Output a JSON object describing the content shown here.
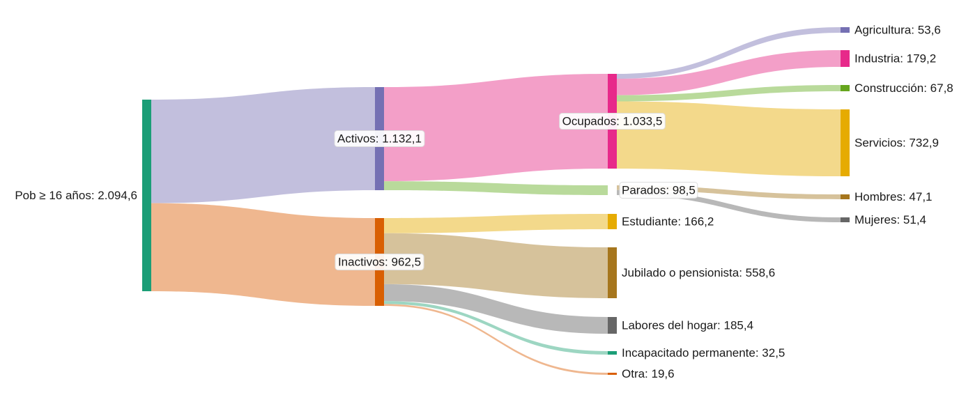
{
  "chart_data": {
    "type": "sankey",
    "nodes": [
      {
        "id": "pob",
        "label": "Pob ≥ 16 años: 2.094,6",
        "value": 2094.6,
        "color": "#1b9e77"
      },
      {
        "id": "activos",
        "label": "Activos: 1.132,1",
        "value": 1132.1,
        "color": "#7570b3"
      },
      {
        "id": "inactivos",
        "label": "Inactivos: 962,5",
        "value": 962.5,
        "color": "#d95f02"
      },
      {
        "id": "ocupados",
        "label": "Ocupados: 1.033,5",
        "value": 1033.5,
        "color": "#e7298a"
      },
      {
        "id": "parados",
        "label": "Parados: 98,5",
        "value": 98.5,
        "color": "#66a61e"
      },
      {
        "id": "estudiante",
        "label": "Estudiante: 166,2",
        "value": 166.2,
        "color": "#e6ab02"
      },
      {
        "id": "jubilado",
        "label": "Jubilado o pensionista: 558,6",
        "value": 558.6,
        "color": "#a6761d"
      },
      {
        "id": "labores",
        "label": "Labores del hogar: 185,4",
        "value": 185.4,
        "color": "#666666"
      },
      {
        "id": "incapacitado",
        "label": "Incapacitado permanente: 32,5",
        "value": 32.5,
        "color": "#1b9e77"
      },
      {
        "id": "otra",
        "label": "Otra: 19,6",
        "value": 19.6,
        "color": "#d95f02"
      },
      {
        "id": "agricultura",
        "label": "Agricultura: 53,6",
        "value": 53.6,
        "color": "#7570b3"
      },
      {
        "id": "industria",
        "label": "Industria: 179,2",
        "value": 179.2,
        "color": "#e7298a"
      },
      {
        "id": "construccion",
        "label": "Construcción: 67,8",
        "value": 67.8,
        "color": "#66a61e"
      },
      {
        "id": "servicios",
        "label": "Servicios: 732,9",
        "value": 732.9,
        "color": "#e6ab02"
      },
      {
        "id": "hombres",
        "label": "Hombres: 47,1",
        "value": 47.1,
        "color": "#a6761d"
      },
      {
        "id": "mujeres",
        "label": "Mujeres: 51,4",
        "value": 51.4,
        "color": "#666666"
      }
    ],
    "links": [
      {
        "source": "pob",
        "target": "activos",
        "value": 1132.1,
        "color": "#c2bfdd"
      },
      {
        "source": "pob",
        "target": "inactivos",
        "value": 962.5,
        "color": "#efb78f"
      },
      {
        "source": "activos",
        "target": "ocupados",
        "value": 1033.5,
        "color": "#f39fc8"
      },
      {
        "source": "activos",
        "target": "parados",
        "value": 98.5,
        "color": "#b9da9b"
      },
      {
        "source": "inactivos",
        "target": "estudiante",
        "value": 166.2,
        "color": "#f3d98b"
      },
      {
        "source": "inactivos",
        "target": "jubilado",
        "value": 558.6,
        "color": "#d6c29b"
      },
      {
        "source": "inactivos",
        "target": "labores",
        "value": 185.4,
        "color": "#b8b8b8"
      },
      {
        "source": "inactivos",
        "target": "incapacitado",
        "value": 32.5,
        "color": "#9dd6c2"
      },
      {
        "source": "inactivos",
        "target": "otra",
        "value": 19.6,
        "color": "#efb78f"
      },
      {
        "source": "ocupados",
        "target": "agricultura",
        "value": 53.6,
        "color": "#c2bfdd"
      },
      {
        "source": "ocupados",
        "target": "industria",
        "value": 179.2,
        "color": "#f39fc8"
      },
      {
        "source": "ocupados",
        "target": "construccion",
        "value": 67.8,
        "color": "#b9da9b"
      },
      {
        "source": "ocupados",
        "target": "servicios",
        "value": 732.9,
        "color": "#f3d98b"
      },
      {
        "source": "parados",
        "target": "hombres",
        "value": 47.1,
        "color": "#d6c29b"
      },
      {
        "source": "parados",
        "target": "mujeres",
        "value": 51.4,
        "color": "#b8b8b8"
      }
    ]
  }
}
